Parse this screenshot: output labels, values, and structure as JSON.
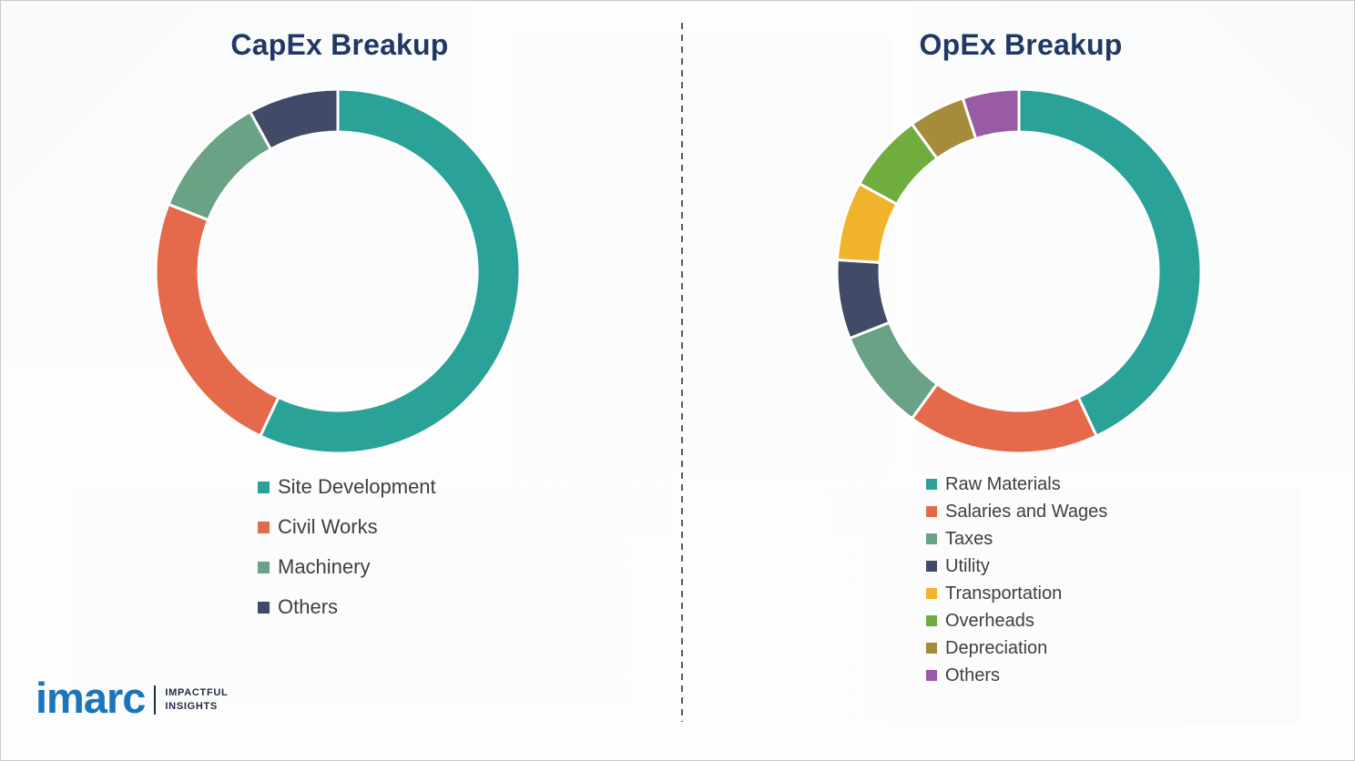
{
  "chart_data": [
    {
      "type": "donut",
      "title": "CapEx Breakup",
      "legend_position": "bottom",
      "labels": [
        "Site Development",
        "Civil Works",
        "Machinery",
        "Others"
      ],
      "values": [
        57,
        24,
        11,
        8
      ],
      "colors": [
        "#2AA298",
        "#E5694B",
        "#69A284",
        "#414A66"
      ]
    },
    {
      "type": "donut",
      "title": "OpEx Breakup",
      "legend_position": "bottom",
      "labels": [
        "Raw Materials",
        "Salaries and Wages",
        "Taxes",
        "Utility",
        "Transportation",
        "Overheads",
        "Depreciation",
        "Others"
      ],
      "values": [
        43,
        17,
        9,
        7,
        7,
        7,
        5,
        5
      ],
      "colors": [
        "#2AA298",
        "#E5694B",
        "#69A284",
        "#414A66",
        "#F1B32B",
        "#6FAE3E",
        "#A68B3D",
        "#995BA5"
      ]
    }
  ],
  "logo": {
    "brand": "imarc",
    "tagline_line1": "IMPACTFUL",
    "tagline_line2": "INSIGHTS",
    "brand_color": "#1B75BC"
  }
}
